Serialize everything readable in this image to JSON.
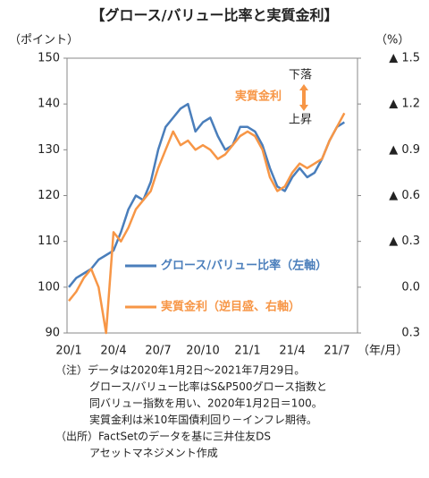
{
  "chart_data": {
    "type": "line",
    "title": "【グロース/バリュー比率と実質金利】",
    "y_label": "（ポイント）",
    "y2_label": "（%）",
    "x_label": "（年/月）",
    "categories": [
      "20/1",
      null,
      null,
      null,
      null,
      null,
      "20/4",
      null,
      null,
      null,
      null,
      null,
      "20/7",
      null,
      null,
      null,
      null,
      null,
      "20/10",
      null,
      null,
      null,
      null,
      null,
      "21/1",
      null,
      null,
      null,
      null,
      null,
      "21/4",
      null,
      null,
      null,
      null,
      null,
      "21/7",
      null
    ],
    "series": [
      {
        "name": "グロース/バリュー比率（左軸）",
        "color": "#4a7ebb",
        "values": [
          100,
          102,
          103,
          104,
          106,
          107,
          108,
          112,
          117,
          120,
          119,
          123,
          130,
          135,
          137,
          139,
          140,
          134,
          136,
          137,
          133,
          130,
          131,
          135,
          135,
          134,
          131,
          126,
          122,
          121,
          124,
          126,
          124,
          125,
          128,
          132,
          135,
          136
        ]
      },
      {
        "name": "実質金利（逆目盛、右軸）",
        "color": "#f79646",
        "axis": "y2",
        "values": [
          0.09,
          0.03,
          -0.06,
          -0.12,
          0.0,
          0.3,
          -0.36,
          -0.3,
          -0.39,
          -0.51,
          -0.57,
          -0.63,
          -0.78,
          -0.9,
          -1.02,
          -0.93,
          -0.96,
          -0.9,
          -0.93,
          -0.9,
          -0.84,
          -0.87,
          -0.93,
          -0.99,
          -1.02,
          -0.99,
          -0.9,
          -0.72,
          -0.63,
          -0.66,
          -0.75,
          -0.81,
          -0.78,
          -0.81,
          -0.84,
          -0.96,
          -1.05,
          -1.14
        ]
      }
    ],
    "ylim": [
      90,
      150
    ],
    "yticks": [
      90,
      100,
      110,
      120,
      130,
      140,
      150
    ],
    "y2lim": [
      0.3,
      -1.5
    ],
    "y2ticks": [
      0.3,
      {
        "value": 0,
        "label": "0.0"
      },
      {
        "value": -0.3,
        "label": "▲ 0.3"
      },
      {
        "value": -0.6,
        "label": "▲ 0.6"
      },
      {
        "value": -0.9,
        "label": "▲ 0.9"
      },
      {
        "value": -1.2,
        "label": "▲ 1.2"
      },
      {
        "value": -1.5,
        "label": "▲ 1.5"
      }
    ],
    "grid": false,
    "annotations": {
      "down": "下落",
      "label": "実質金利",
      "up": "上昇"
    },
    "notes": [
      "（注）データは2020年1月2日～2021年7月29日。",
      "グロース/バリュー比率はS&P500グロース指数と",
      "同バリュー指数を用い、2020年1月2日＝100。",
      "実質金利は米10年国債利回り－インフレ期待。",
      "（出所）FactSetのデータを基に三井住友DS",
      "アセットマネジメント作成"
    ]
  }
}
